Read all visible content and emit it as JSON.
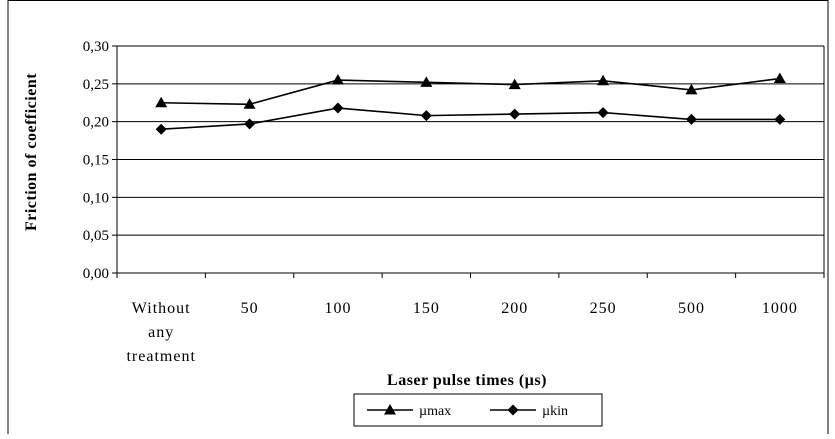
{
  "chart_data": {
    "type": "line",
    "title": "",
    "xlabel": "Laser pulse times (µs)",
    "ylabel": "Friction of coefficient",
    "categories": [
      [
        "Without",
        "any",
        "treatment"
      ],
      [
        "50"
      ],
      [
        "100"
      ],
      [
        "150"
      ],
      [
        "200"
      ],
      [
        "250"
      ],
      [
        "500"
      ],
      [
        "1000"
      ]
    ],
    "ylim": [
      0,
      0.3
    ],
    "yticks": [
      "0,00",
      "0,05",
      "0,10",
      "0,15",
      "0,20",
      "0,25",
      "0,30"
    ],
    "grid": true,
    "legend_position": "bottom",
    "series": [
      {
        "name": "µmax",
        "marker": "triangle",
        "color": "#000000",
        "values": [
          0.225,
          0.223,
          0.255,
          0.252,
          0.249,
          0.254,
          0.242,
          0.257
        ]
      },
      {
        "name": "µkin",
        "marker": "diamond",
        "color": "#000000",
        "values": [
          0.19,
          0.197,
          0.218,
          0.208,
          0.21,
          0.212,
          0.203,
          0.203
        ]
      }
    ]
  }
}
